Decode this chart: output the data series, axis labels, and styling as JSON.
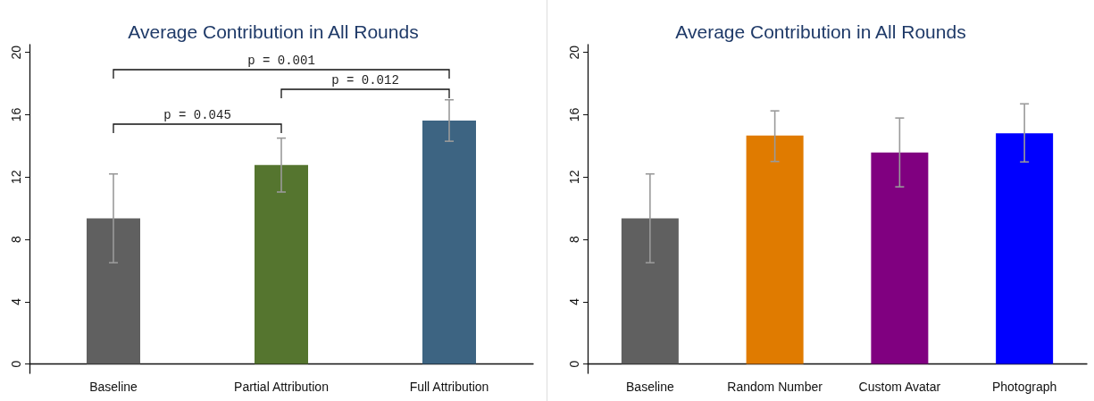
{
  "chart_data": [
    {
      "type": "bar",
      "title": "Average Contribution in All Rounds",
      "categories": [
        "Baseline",
        "Partial Attribution",
        "Full Attribution"
      ],
      "values": [
        9.35,
        12.77,
        15.63
      ],
      "colors": [
        "#606060",
        "#55752f",
        "#3d6482"
      ],
      "errors": [
        [
          6.5,
          12.2
        ],
        [
          11.04,
          14.5
        ],
        [
          14.3,
          16.96
        ]
      ],
      "ylim": [
        -0.6,
        20.5
      ],
      "yticks": [
        0,
        4,
        8,
        12,
        16,
        20
      ],
      "annotations": [
        "p = 0.001",
        "p = 0.012",
        "p = 0.045"
      ]
    },
    {
      "type": "bar",
      "title": "Average Contribution in All Rounds",
      "categories": [
        "Baseline",
        "Random Number",
        "Custom Avatar",
        "Photograph"
      ],
      "values": [
        9.35,
        14.66,
        13.57,
        14.81
      ],
      "colors": [
        "#606060",
        "#e07b00",
        "#800080",
        "#0000ff"
      ],
      "errors": [
        [
          6.5,
          12.2
        ],
        [
          13.0,
          16.25
        ],
        [
          11.37,
          15.79
        ],
        [
          12.97,
          16.7
        ]
      ],
      "ylim": [
        -0.6,
        20.5
      ],
      "yticks": [
        0,
        4,
        8,
        12,
        16,
        20
      ]
    }
  ]
}
